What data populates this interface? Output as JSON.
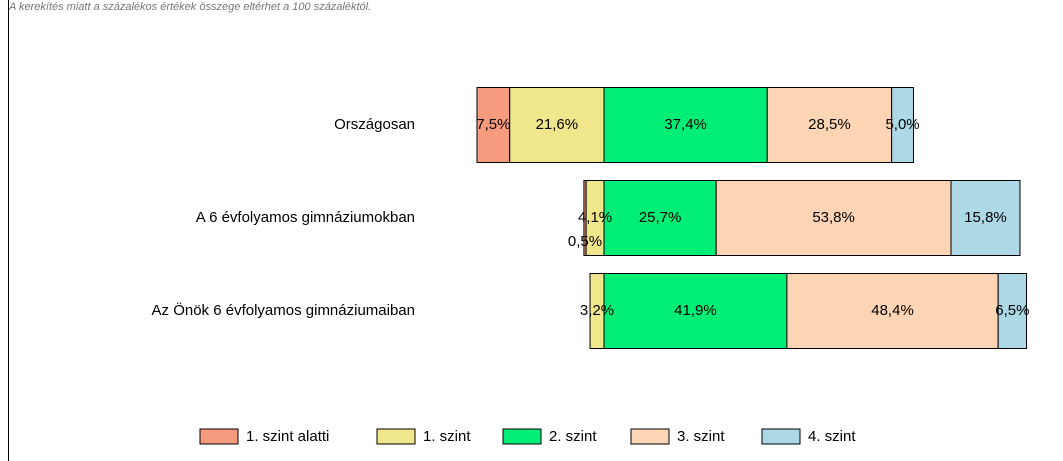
{
  "chart_data": {
    "type": "bar",
    "orientation": "horizontal",
    "stacked": "diverging",
    "subtitle": "A kerekítés miatt a százalékos értékek összege eltérhet a 100 százaléktól.",
    "categories": [
      "Országosan",
      "A 6 évfolyamos gimnáziumokban",
      "Az Önök 6 évfolyamos gimnáziumaiban"
    ],
    "series": [
      {
        "name": "1. szint alatti",
        "color": "#f79b7f",
        "values": [
          7.5,
          0.5,
          null
        ],
        "value_labels": [
          "7,5%",
          "0,5%",
          null
        ]
      },
      {
        "name": "1. szint",
        "color": "#f0e68c",
        "values": [
          21.6,
          4.1,
          3.2
        ],
        "value_labels": [
          "21,6%",
          "4,1%",
          "3,2%"
        ]
      },
      {
        "name": "2. szint",
        "color": "#00ee76",
        "values": [
          37.4,
          25.7,
          41.9
        ],
        "value_labels": [
          "37,4%",
          "25,7%",
          "41,9%"
        ]
      },
      {
        "name": "3. szint",
        "color": "#fdd5b4",
        "values": [
          28.5,
          53.8,
          48.4
        ],
        "value_labels": [
          "28,5%",
          "53,8%",
          "48,4%"
        ]
      },
      {
        "name": "4. szint",
        "color": "#add8e6",
        "values": [
          5.0,
          15.8,
          6.5
        ],
        "value_labels": [
          "5,0%",
          "15,8%",
          "6,5%"
        ]
      }
    ],
    "legend": "bottom"
  }
}
